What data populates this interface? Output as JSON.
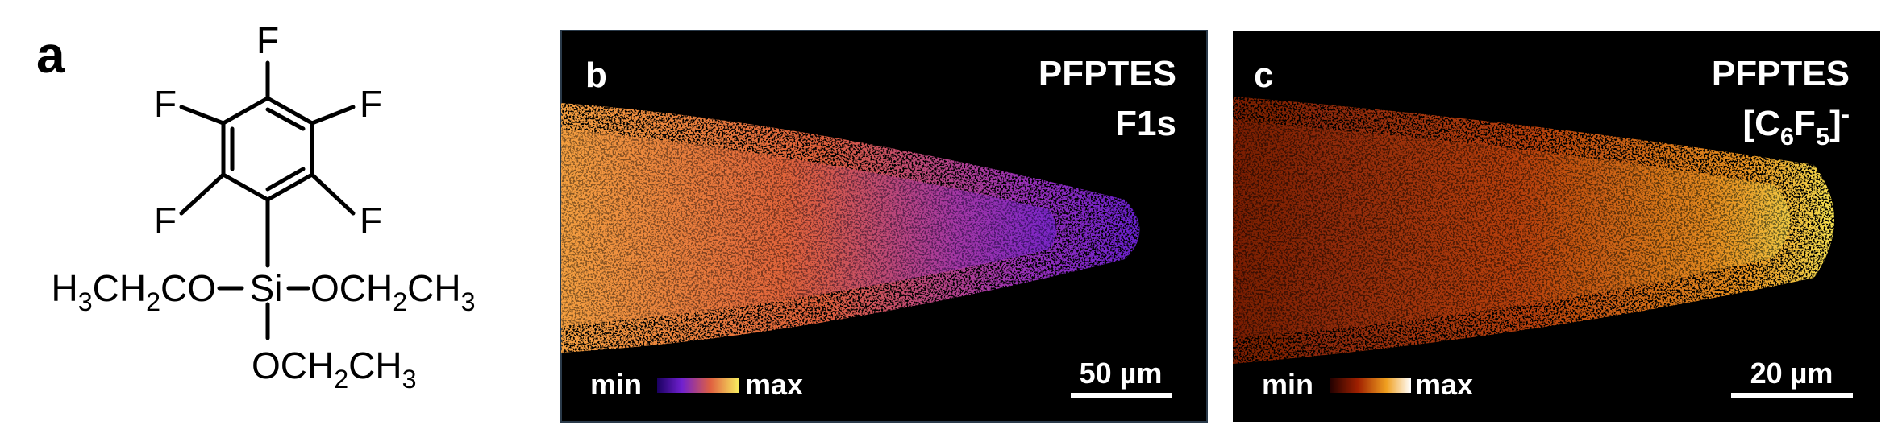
{
  "panel_a": {
    "letter": "a",
    "fluorines": [
      "F",
      "F",
      "F",
      "F",
      "F"
    ],
    "silicon": "Si",
    "groups": [
      [
        {
          "t": "H"
        },
        {
          "sub": "3"
        },
        {
          "t": "CH"
        },
        {
          "sub": "2"
        },
        {
          "t": "CO"
        }
      ],
      [
        {
          "t": "OCH"
        },
        {
          "sub": "2"
        },
        {
          "t": "CH"
        },
        {
          "sub": "3"
        }
      ],
      [
        {
          "t": "OCH"
        },
        {
          "sub": "2"
        },
        {
          "t": "CH"
        },
        {
          "sub": "3"
        }
      ]
    ]
  },
  "panel_b": {
    "letter": "b",
    "compound": "PFPTES",
    "signal": [
      {
        "t": "F1s"
      }
    ],
    "colorbar": {
      "min": "min",
      "max": "max"
    },
    "scale_bar": "50 µm"
  },
  "panel_c": {
    "letter": "c",
    "compound": "PFPTES",
    "signal": [
      {
        "t": "[C"
      },
      {
        "sub": "6"
      },
      {
        "t": "F"
      },
      {
        "sub": "5"
      },
      {
        "t": "]"
      },
      {
        "sup": "-"
      }
    ],
    "colorbar": {
      "min": "min",
      "max": "max"
    },
    "scale_bar": "20 µm"
  }
}
